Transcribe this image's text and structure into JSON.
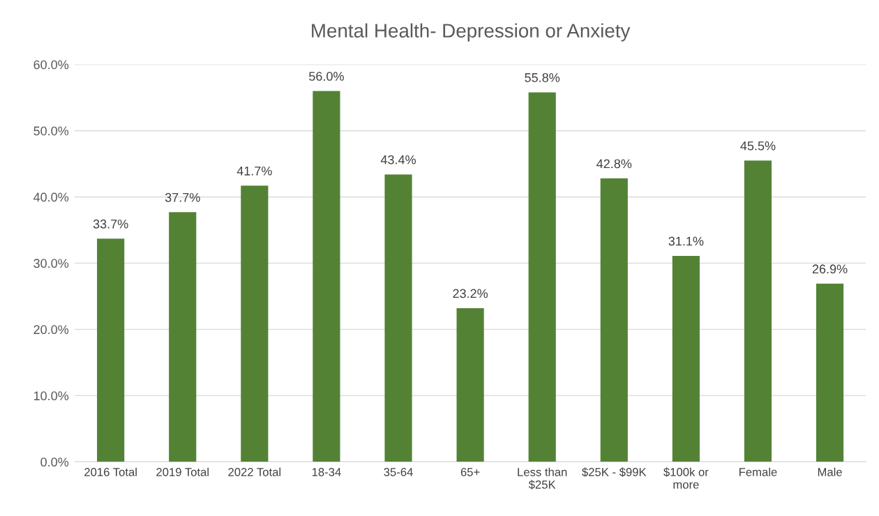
{
  "chart_data": {
    "type": "bar",
    "title": "Mental Health- Depression or Anxiety",
    "categories": [
      "2016 Total",
      "2019 Total",
      "2022 Total",
      "18-34",
      "35-64",
      "65+",
      "Less than $25K",
      "$25K - $99K",
      "$100k or more",
      "Female",
      "Male"
    ],
    "values": [
      33.7,
      37.7,
      41.7,
      56.0,
      43.4,
      23.2,
      55.8,
      42.8,
      31.1,
      45.5,
      26.9
    ],
    "value_labels": [
      "33.7%",
      "37.7%",
      "41.7%",
      "56.0%",
      "43.4%",
      "23.2%",
      "55.8%",
      "42.8%",
      "31.1%",
      "45.5%",
      "26.9%"
    ],
    "color": "#548235",
    "ylim": [
      0,
      60
    ],
    "yticks": [
      {
        "value": 0,
        "label": "0.0%"
      },
      {
        "value": 10,
        "label": "10.0%"
      },
      {
        "value": 20,
        "label": "20.0%"
      },
      {
        "value": 30,
        "label": "30.0%"
      },
      {
        "value": 40,
        "label": "40.0%"
      },
      {
        "value": 50,
        "label": "50.0%"
      },
      {
        "value": 60,
        "label": "60.0%"
      }
    ],
    "grid": "y",
    "legend": false
  }
}
